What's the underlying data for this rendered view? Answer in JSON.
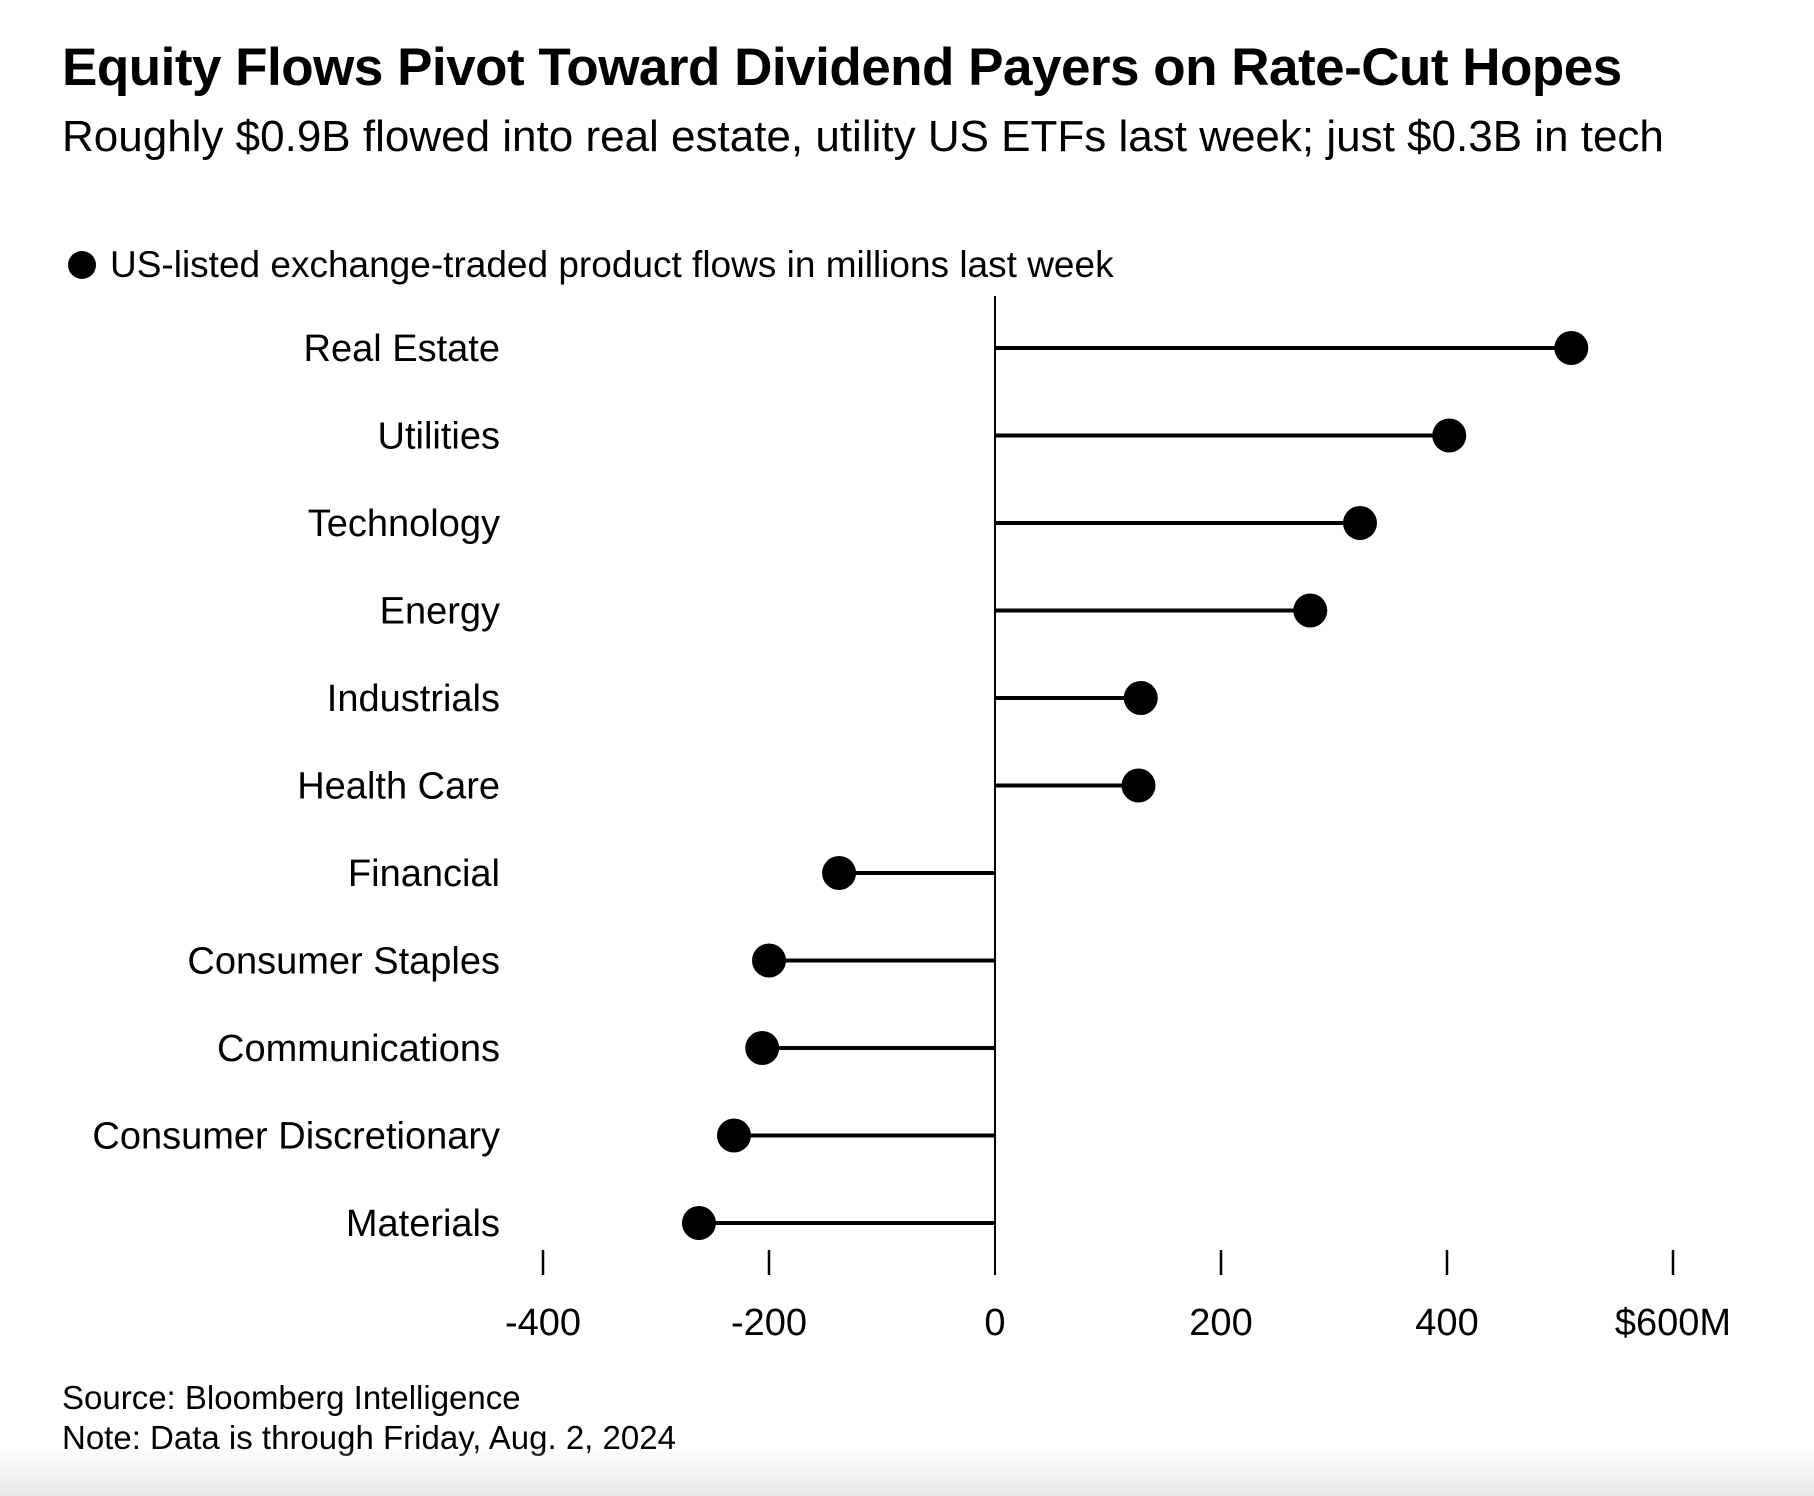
{
  "chart_data": {
    "type": "lollipop",
    "title": "Equity Flows Pivot Toward Dividend Payers on Rate-Cut Hopes",
    "subtitle": "Roughly $0.9B flowed into real estate, utility US ETFs last week; just $0.3B in tech",
    "legend": {
      "placement": "top-left",
      "entries": [
        "US-listed exchange-traded product flows in millions last week"
      ]
    },
    "categories": [
      "Real Estate",
      "Utilities",
      "Technology",
      "Energy",
      "Industrials",
      "Health Care",
      "Financial",
      "Consumer Staples",
      "Communications",
      "Consumer Discretionary",
      "Materials"
    ],
    "values": [
      510,
      402,
      323,
      279,
      129,
      127,
      -138,
      -200,
      -206,
      -231,
      -262
    ],
    "xlim": [
      -400,
      600
    ],
    "x_ticks": [
      -400,
      -200,
      0,
      200,
      400,
      600
    ],
    "x_tick_labels": [
      "-400",
      "-200",
      "0",
      "200",
      "400",
      "$600M"
    ],
    "grid": false,
    "color": "#000000",
    "source": "Source: Bloomberg Intelligence",
    "note": "Note: Data is through Friday, Aug. 2, 2024"
  }
}
